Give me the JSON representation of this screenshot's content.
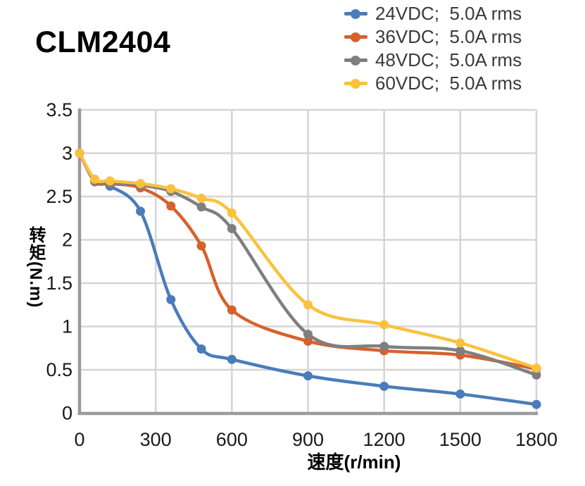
{
  "chart_data": {
    "type": "line",
    "title": "CLM2404",
    "xlabel": "速度(r/min)",
    "ylabel": "转矩(N.m)",
    "x": [
      0,
      60,
      120,
      240,
      360,
      480,
      600,
      900,
      1200,
      1500,
      1800
    ],
    "series": [
      {
        "id": "24vdc",
        "name": "24VDC;  5.0A rms",
        "color": "#4A7CBA",
        "values": [
          3.0,
          2.67,
          2.62,
          2.33,
          1.31,
          0.74,
          0.62,
          0.43,
          0.31,
          0.22,
          0.1
        ]
      },
      {
        "id": "36vdc",
        "name": "36VDC;  5.0A rms",
        "color": "#D6622B",
        "values": [
          3.0,
          2.68,
          2.65,
          2.6,
          2.39,
          1.93,
          1.19,
          0.83,
          0.72,
          0.67,
          0.51
        ]
      },
      {
        "id": "48vdc",
        "name": "48VDC;  5.0A rms",
        "color": "#7F7F7F",
        "values": [
          3.0,
          2.69,
          2.66,
          2.63,
          2.56,
          2.38,
          2.13,
          0.91,
          0.77,
          0.72,
          0.44
        ]
      },
      {
        "id": "60vdc",
        "name": "60VDC;  5.0A rms",
        "color": "#FBC13E",
        "values": [
          3.0,
          2.7,
          2.68,
          2.65,
          2.59,
          2.48,
          2.31,
          1.25,
          1.02,
          0.81,
          0.52
        ]
      }
    ],
    "xticks": [
      0,
      300,
      600,
      900,
      1200,
      1500,
      1800
    ],
    "yticks": [
      0,
      0.5,
      1,
      1.5,
      2,
      2.5,
      3,
      3.5
    ],
    "xlim": [
      0,
      1800
    ],
    "ylim": [
      0,
      3.5
    ],
    "grid": true,
    "legend_position": "top-right",
    "marker": "circle",
    "smooth": true
  },
  "colors": {
    "grid": "#D5D5D7",
    "axis": "#9B9B9D",
    "tick_text": "#1A1A1A",
    "legend_text": "#3A3A3A",
    "title_text": "#000000"
  }
}
